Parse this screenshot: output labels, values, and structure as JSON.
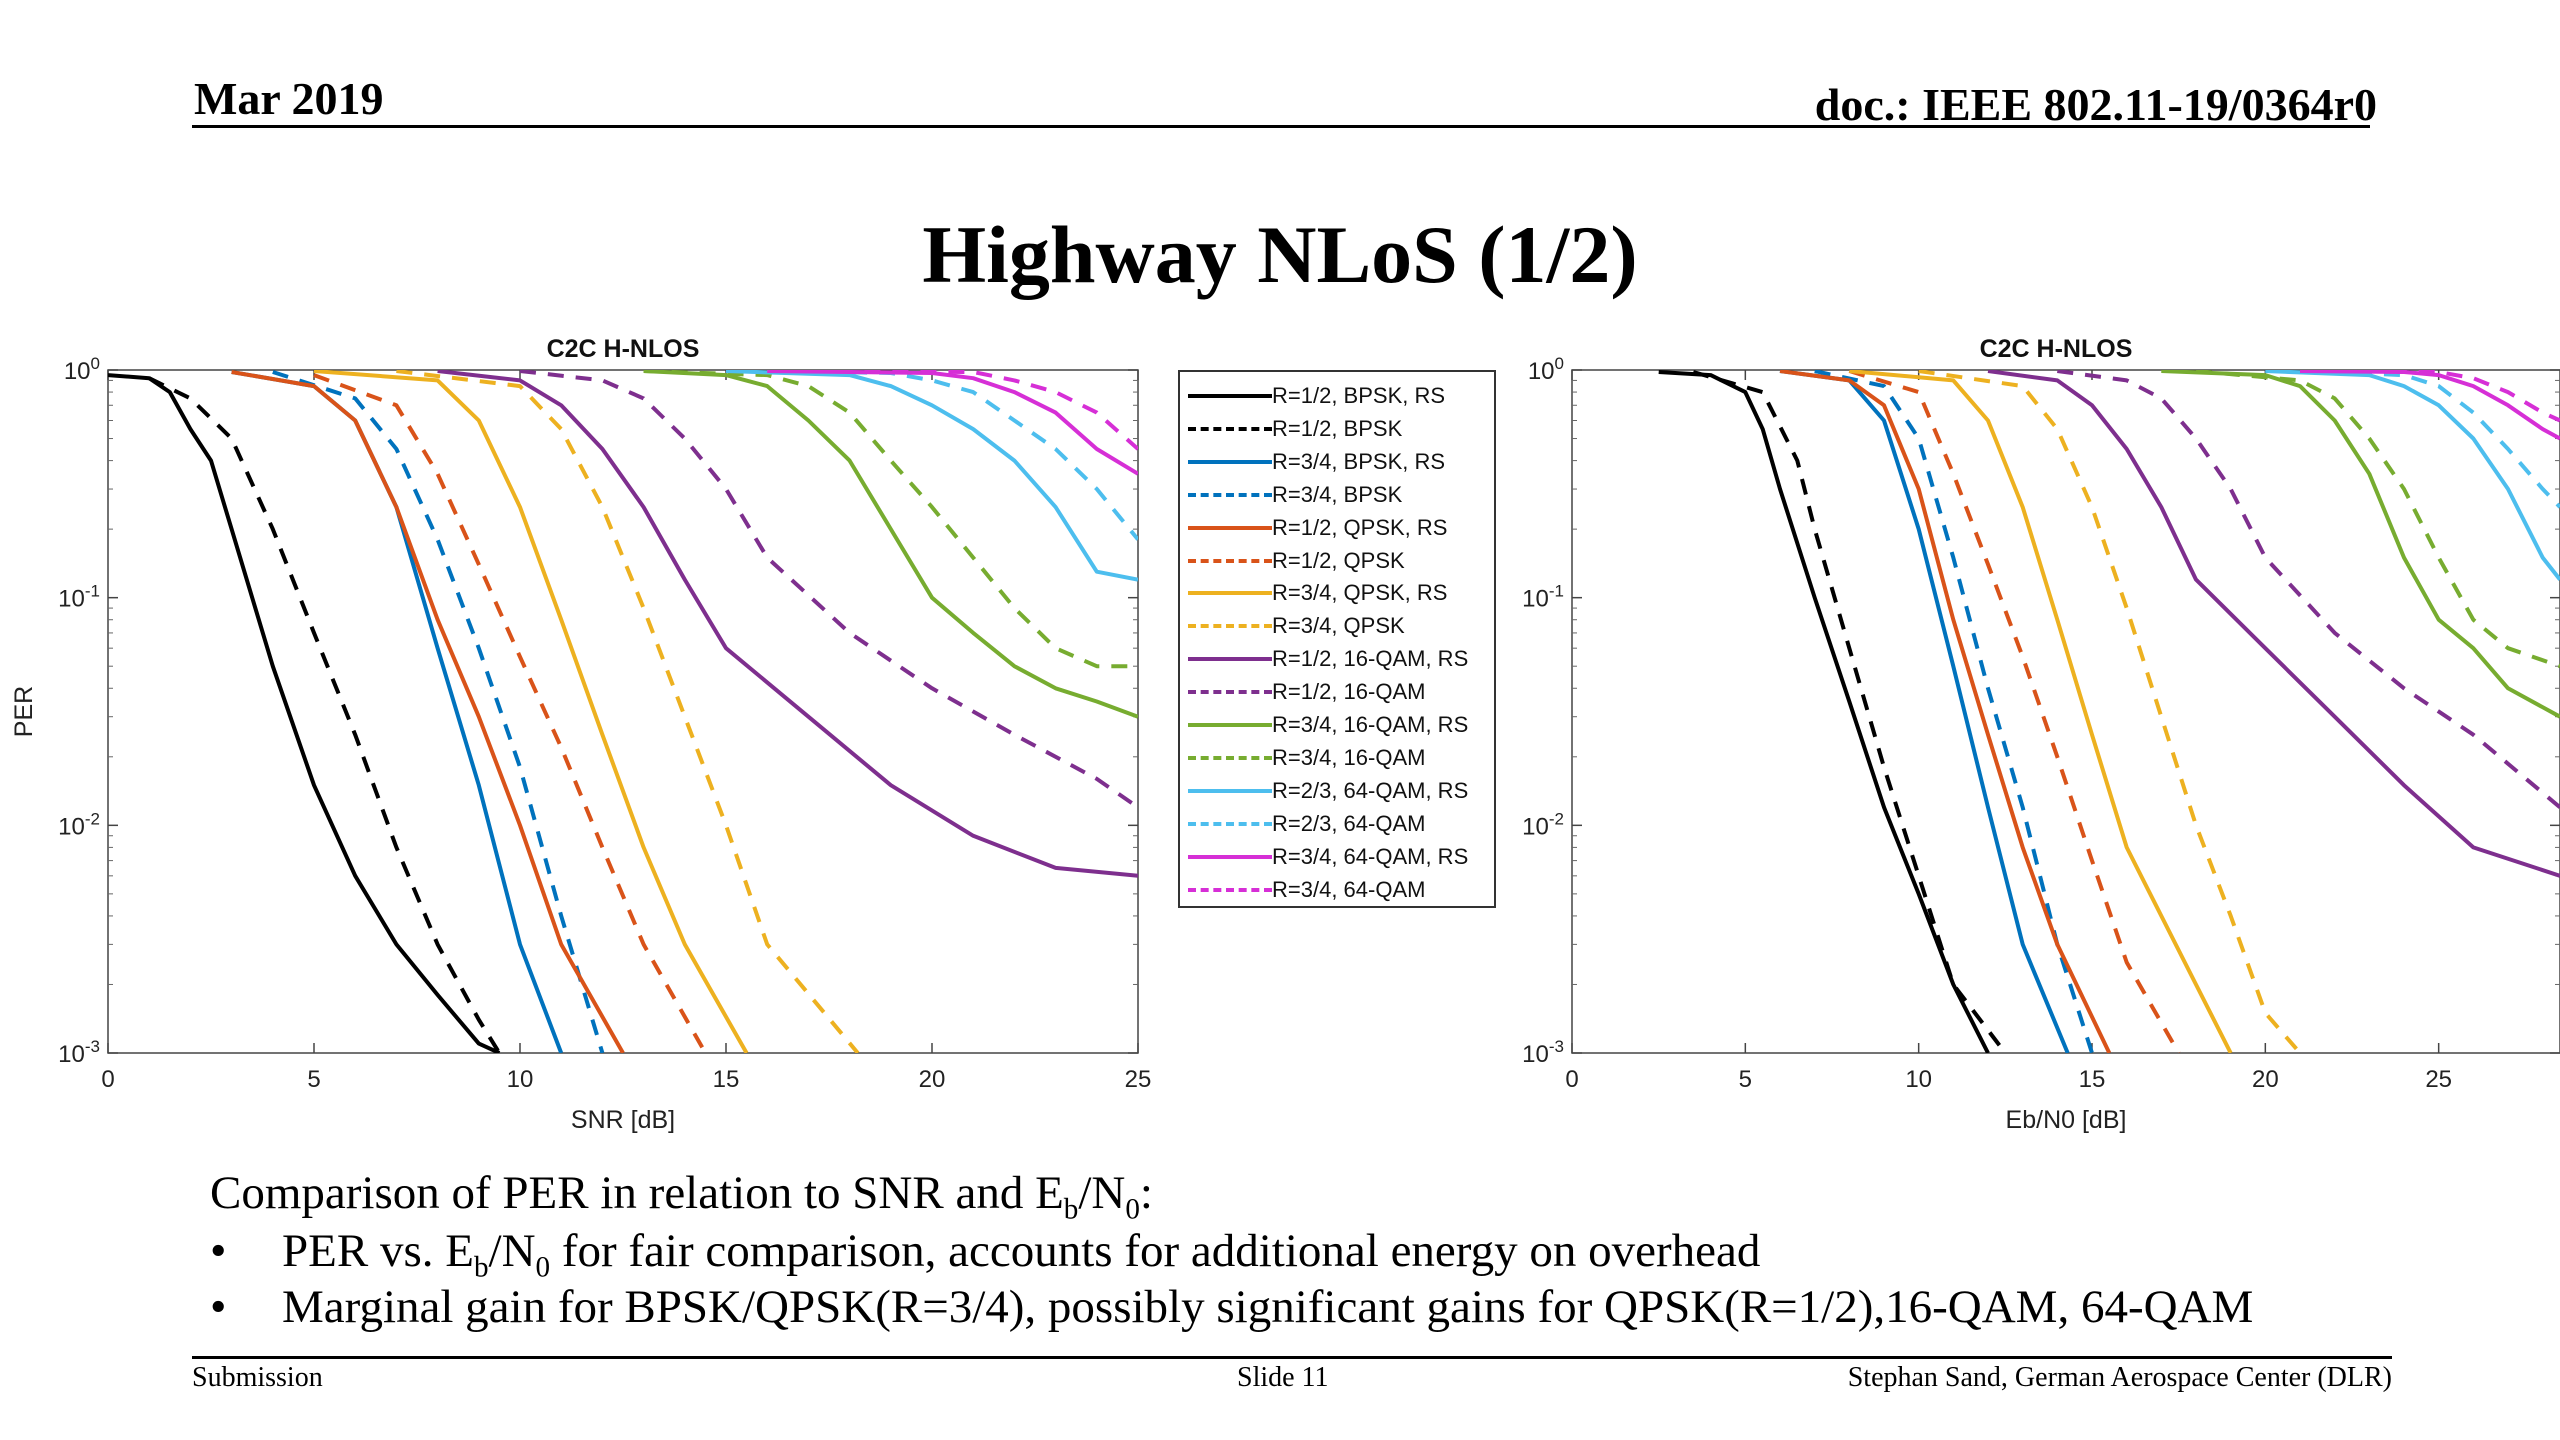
{
  "header": {
    "date": "Mar 2019",
    "doc": "doc.: IEEE 802.11-19/0364r0"
  },
  "slide_title": "Highway NLoS (1/2)",
  "bullets": {
    "intro": {
      "a": "Comparison of PER in relation to SNR and E",
      "sub1": "b",
      "mid": "/N",
      "sub2": "0",
      "end": ":"
    },
    "item1": {
      "a": "PER vs. E",
      "sub1": "b",
      "mid": "/N",
      "sub2": "0",
      "end": " for fair comparison, accounts for additional energy on overhead"
    },
    "item2": {
      "text": "Marginal gain for BPSK/QPSK(R=3/4), possibly significant gains for QPSK(R=1/2),16-QAM, 64-QAM"
    },
    "bullet_char": "•"
  },
  "footer": {
    "left": "Submission",
    "center": "Slide 11",
    "right": "Stephan Sand, German Aerospace Center (DLR)"
  },
  "legend": [
    {
      "label": "R=1/2, BPSK, RS",
      "color": "#000000",
      "dashed": false
    },
    {
      "label": "R=1/2, BPSK",
      "color": "#000000",
      "dashed": true
    },
    {
      "label": "R=3/4, BPSK, RS",
      "color": "#0072BD",
      "dashed": false
    },
    {
      "label": "R=3/4, BPSK",
      "color": "#0072BD",
      "dashed": true
    },
    {
      "label": "R=1/2, QPSK, RS",
      "color": "#D95319",
      "dashed": false
    },
    {
      "label": "R=1/2, QPSK",
      "color": "#D95319",
      "dashed": true
    },
    {
      "label": "R=3/4, QPSK, RS",
      "color": "#EDB120",
      "dashed": false
    },
    {
      "label": "R=3/4, QPSK",
      "color": "#EDB120",
      "dashed": true
    },
    {
      "label": "R=1/2, 16-QAM, RS",
      "color": "#7E2F8E",
      "dashed": false
    },
    {
      "label": "R=1/2, 16-QAM",
      "color": "#7E2F8E",
      "dashed": true
    },
    {
      "label": "R=3/4, 16-QAM, RS",
      "color": "#77AC30",
      "dashed": false
    },
    {
      "label": "R=3/4, 16-QAM",
      "color": "#77AC30",
      "dashed": true
    },
    {
      "label": "R=2/3, 64-QAM, RS",
      "color": "#4DBEEE",
      "dashed": false
    },
    {
      "label": "R=2/3, 64-QAM",
      "color": "#4DBEEE",
      "dashed": true
    },
    {
      "label": "R=3/4, 64-QAM, RS",
      "color": "#D62FD6",
      "dashed": false
    },
    {
      "label": "R=3/4, 64-QAM",
      "color": "#D62FD6",
      "dashed": true
    }
  ],
  "chart_data": [
    {
      "type": "line",
      "title": "C2C H-NLOS",
      "xlabel": "SNR [dB]",
      "ylabel": "PER",
      "xlim": [
        0,
        25
      ],
      "ylim": [
        0.001,
        1
      ],
      "yscale": "log",
      "xticks": [
        0,
        5,
        10,
        15,
        20,
        25
      ],
      "yticks": [
        {
          "label": "10",
          "exp": "0",
          "v": 1
        },
        {
          "label": "10",
          "exp": "-1",
          "v": 0.1
        },
        {
          "label": "10",
          "exp": "-2",
          "v": 0.01
        },
        {
          "label": "10",
          "exp": "-3",
          "v": 0.001
        }
      ],
      "series": [
        {
          "name": "R=1/2, BPSK, RS",
          "color": "#000000",
          "dashed": false,
          "x": [
            0,
            1,
            1.5,
            2,
            2.5,
            3,
            3.5,
            4,
            5,
            6,
            7,
            8,
            9,
            9.5
          ],
          "y": [
            0.95,
            0.92,
            0.8,
            0.55,
            0.4,
            0.2,
            0.1,
            0.05,
            0.015,
            0.006,
            0.003,
            0.0018,
            0.0011,
            0.001
          ]
        },
        {
          "name": "R=1/2, BPSK",
          "color": "#000000",
          "dashed": true,
          "x": [
            1,
            2,
            3,
            4,
            5,
            6,
            7,
            8,
            9,
            9.5
          ],
          "y": [
            0.92,
            0.75,
            0.5,
            0.2,
            0.07,
            0.025,
            0.008,
            0.003,
            0.0014,
            0.001
          ]
        },
        {
          "name": "R=3/4, BPSK, RS",
          "color": "#0072BD",
          "dashed": false,
          "x": [
            3,
            5,
            6,
            7,
            8,
            9,
            10,
            11
          ],
          "y": [
            0.98,
            0.85,
            0.6,
            0.25,
            0.06,
            0.015,
            0.003,
            0.001
          ]
        },
        {
          "name": "R=3/4, BPSK",
          "color": "#0072BD",
          "dashed": true,
          "x": [
            4,
            6,
            7,
            8,
            9,
            10,
            11,
            12
          ],
          "y": [
            0.98,
            0.75,
            0.45,
            0.18,
            0.06,
            0.018,
            0.004,
            0.001
          ]
        },
        {
          "name": "R=1/2, QPSK, RS",
          "color": "#D95319",
          "dashed": false,
          "x": [
            3,
            5,
            6,
            7,
            8,
            9,
            10,
            11,
            12.5
          ],
          "y": [
            0.98,
            0.85,
            0.6,
            0.25,
            0.08,
            0.03,
            0.01,
            0.003,
            0.001
          ]
        },
        {
          "name": "R=1/2, QPSK",
          "color": "#D95319",
          "dashed": true,
          "x": [
            5,
            7,
            8,
            9,
            10,
            11,
            12,
            13,
            14.5
          ],
          "y": [
            0.95,
            0.7,
            0.35,
            0.14,
            0.055,
            0.022,
            0.008,
            0.003,
            0.001
          ]
        },
        {
          "name": "R=3/4, QPSK, RS",
          "color": "#EDB120",
          "dashed": false,
          "x": [
            5,
            8,
            9,
            10,
            11,
            12,
            13,
            14,
            15.5
          ],
          "y": [
            0.99,
            0.9,
            0.6,
            0.25,
            0.08,
            0.025,
            0.008,
            0.003,
            0.001
          ]
        },
        {
          "name": "R=3/4, QPSK",
          "color": "#EDB120",
          "dashed": true,
          "x": [
            7,
            10,
            11,
            12,
            13,
            14,
            15,
            16,
            18.2
          ],
          "y": [
            0.99,
            0.85,
            0.55,
            0.25,
            0.09,
            0.03,
            0.01,
            0.003,
            0.001
          ]
        },
        {
          "name": "R=1/2, 16-QAM, RS",
          "color": "#7E2F8E",
          "dashed": false,
          "x": [
            8,
            10,
            11,
            12,
            13,
            14,
            15,
            17,
            19,
            21,
            23,
            25
          ],
          "y": [
            0.99,
            0.9,
            0.7,
            0.45,
            0.25,
            0.12,
            0.06,
            0.03,
            0.015,
            0.009,
            0.0065,
            0.006
          ]
        },
        {
          "name": "R=1/2, 16-QAM",
          "color": "#7E2F8E",
          "dashed": true,
          "x": [
            10,
            12,
            13,
            14,
            15,
            16,
            18,
            20,
            22,
            24,
            25
          ],
          "y": [
            0.99,
            0.9,
            0.75,
            0.5,
            0.3,
            0.15,
            0.07,
            0.04,
            0.025,
            0.016,
            0.012
          ]
        },
        {
          "name": "R=3/4, 16-QAM, RS",
          "color": "#77AC30",
          "dashed": false,
          "x": [
            13,
            15,
            16,
            17,
            18,
            19,
            20,
            21,
            22,
            23,
            24,
            25
          ],
          "y": [
            0.99,
            0.95,
            0.85,
            0.6,
            0.4,
            0.2,
            0.1,
            0.07,
            0.05,
            0.04,
            0.035,
            0.03
          ]
        },
        {
          "name": "R=3/4, 16-QAM",
          "color": "#77AC30",
          "dashed": true,
          "x": [
            13,
            16,
            17,
            18,
            19,
            20,
            21,
            22,
            23,
            24,
            25
          ],
          "y": [
            0.99,
            0.95,
            0.85,
            0.65,
            0.4,
            0.25,
            0.15,
            0.09,
            0.06,
            0.05,
            0.05
          ]
        },
        {
          "name": "R=2/3, 64-QAM, RS",
          "color": "#4DBEEE",
          "dashed": false,
          "x": [
            15,
            18,
            19,
            20,
            21,
            22,
            23,
            24,
            25
          ],
          "y": [
            0.99,
            0.95,
            0.85,
            0.7,
            0.55,
            0.4,
            0.25,
            0.13,
            0.12
          ]
        },
        {
          "name": "R=2/3, 64-QAM",
          "color": "#4DBEEE",
          "dashed": true,
          "x": [
            16,
            19,
            20,
            21,
            22,
            23,
            24,
            25
          ],
          "y": [
            0.99,
            0.97,
            0.9,
            0.8,
            0.6,
            0.45,
            0.3,
            0.18
          ]
        },
        {
          "name": "R=3/4, 64-QAM, RS",
          "color": "#D62FD6",
          "dashed": false,
          "x": [
            16,
            20,
            21,
            22,
            23,
            24,
            25
          ],
          "y": [
            0.99,
            0.97,
            0.92,
            0.8,
            0.65,
            0.45,
            0.35
          ]
        },
        {
          "name": "R=3/4, 64-QAM",
          "color": "#D62FD6",
          "dashed": true,
          "x": [
            17,
            21,
            22,
            23,
            24,
            25
          ],
          "y": [
            0.99,
            0.98,
            0.9,
            0.8,
            0.65,
            0.45
          ]
        }
      ]
    },
    {
      "type": "line",
      "title": "C2C H-NLOS",
      "xlabel": "Eb/N0 [dB]",
      "ylabel": "",
      "xlim": [
        0,
        28.5
      ],
      "ylim": [
        0.001,
        1
      ],
      "yscale": "log",
      "xticks": [
        0,
        5,
        10,
        15,
        20,
        25
      ],
      "yticks": [
        {
          "label": "10",
          "exp": "0",
          "v": 1
        },
        {
          "label": "10",
          "exp": "-1",
          "v": 0.1
        },
        {
          "label": "10",
          "exp": "-2",
          "v": 0.01
        },
        {
          "label": "10",
          "exp": "-3",
          "v": 0.001
        }
      ],
      "series": [
        {
          "name": "R=1/2, BPSK, RS",
          "color": "#000000",
          "dashed": false,
          "x": [
            2.5,
            4,
            5,
            5.5,
            6,
            7,
            8,
            9,
            10,
            11,
            12
          ],
          "y": [
            0.98,
            0.95,
            0.8,
            0.55,
            0.3,
            0.1,
            0.035,
            0.012,
            0.005,
            0.002,
            0.001
          ]
        },
        {
          "name": "R=1/2, BPSK",
          "color": "#000000",
          "dashed": true,
          "x": [
            3.5,
            5.5,
            6.5,
            7,
            8,
            9,
            10,
            11,
            12.5
          ],
          "y": [
            0.98,
            0.8,
            0.4,
            0.2,
            0.06,
            0.018,
            0.006,
            0.002,
            0.001
          ]
        },
        {
          "name": "R=3/4, BPSK, RS",
          "color": "#0072BD",
          "dashed": false,
          "x": [
            6,
            8,
            9,
            10,
            11,
            12,
            13,
            14.3
          ],
          "y": [
            0.99,
            0.9,
            0.6,
            0.2,
            0.05,
            0.012,
            0.003,
            0.001
          ]
        },
        {
          "name": "R=3/4, BPSK",
          "color": "#0072BD",
          "dashed": true,
          "x": [
            7,
            9,
            10,
            11,
            12,
            13,
            14,
            15
          ],
          "y": [
            0.99,
            0.85,
            0.5,
            0.15,
            0.04,
            0.012,
            0.003,
            0.001
          ]
        },
        {
          "name": "R=1/2, QPSK, RS",
          "color": "#D95319",
          "dashed": false,
          "x": [
            6,
            8,
            9,
            10,
            11,
            12,
            13,
            14,
            15.5
          ],
          "y": [
            0.99,
            0.9,
            0.7,
            0.3,
            0.08,
            0.025,
            0.008,
            0.003,
            0.001
          ]
        },
        {
          "name": "R=1/2, QPSK",
          "color": "#D95319",
          "dashed": true,
          "x": [
            8,
            10,
            11,
            12,
            13,
            14,
            15,
            16,
            17.5
          ],
          "y": [
            0.99,
            0.8,
            0.35,
            0.14,
            0.055,
            0.02,
            0.007,
            0.0025,
            0.001
          ]
        },
        {
          "name": "R=3/4, QPSK, RS",
          "color": "#EDB120",
          "dashed": false,
          "x": [
            8,
            11,
            12,
            13,
            14,
            15,
            16,
            17,
            18,
            19
          ],
          "y": [
            0.99,
            0.9,
            0.6,
            0.25,
            0.08,
            0.025,
            0.008,
            0.004,
            0.002,
            0.001
          ]
        },
        {
          "name": "R=3/4, QPSK",
          "color": "#EDB120",
          "dashed": true,
          "x": [
            10,
            13,
            14,
            15,
            16,
            17,
            18,
            19,
            20,
            21
          ],
          "y": [
            0.99,
            0.85,
            0.55,
            0.25,
            0.09,
            0.03,
            0.01,
            0.004,
            0.0015,
            0.001
          ]
        },
        {
          "name": "R=1/2, 16-QAM, RS",
          "color": "#7E2F8E",
          "dashed": false,
          "x": [
            12,
            14,
            15,
            16,
            17,
            18,
            20,
            22,
            24,
            26,
            28.5
          ],
          "y": [
            0.99,
            0.9,
            0.7,
            0.45,
            0.25,
            0.12,
            0.06,
            0.03,
            0.015,
            0.008,
            0.006
          ]
        },
        {
          "name": "R=1/2, 16-QAM",
          "color": "#7E2F8E",
          "dashed": true,
          "x": [
            14,
            16,
            17,
            18,
            19,
            20,
            22,
            24,
            26,
            28.5
          ],
          "y": [
            0.99,
            0.9,
            0.75,
            0.5,
            0.3,
            0.15,
            0.07,
            0.04,
            0.025,
            0.012
          ]
        },
        {
          "name": "R=3/4, 16-QAM, RS",
          "color": "#77AC30",
          "dashed": false,
          "x": [
            17,
            20,
            21,
            22,
            23,
            24,
            25,
            26,
            27,
            28.5
          ],
          "y": [
            0.99,
            0.95,
            0.85,
            0.6,
            0.35,
            0.15,
            0.08,
            0.06,
            0.04,
            0.03
          ]
        },
        {
          "name": "R=3/4, 16-QAM",
          "color": "#77AC30",
          "dashed": true,
          "x": [
            18,
            21,
            22,
            23,
            24,
            25,
            26,
            27,
            28.5
          ],
          "y": [
            0.99,
            0.9,
            0.75,
            0.5,
            0.3,
            0.15,
            0.08,
            0.06,
            0.05
          ]
        },
        {
          "name": "R=2/3, 64-QAM, RS",
          "color": "#4DBEEE",
          "dashed": false,
          "x": [
            20,
            23,
            24,
            25,
            26,
            27,
            28,
            28.5
          ],
          "y": [
            0.99,
            0.95,
            0.85,
            0.7,
            0.5,
            0.3,
            0.15,
            0.12
          ]
        },
        {
          "name": "R=2/3, 64-QAM",
          "color": "#4DBEEE",
          "dashed": true,
          "x": [
            21,
            24,
            25,
            26,
            27,
            28,
            28.5
          ],
          "y": [
            0.99,
            0.95,
            0.85,
            0.65,
            0.45,
            0.3,
            0.25
          ]
        },
        {
          "name": "R=3/4, 64-QAM, RS",
          "color": "#D62FD6",
          "dashed": false,
          "x": [
            21,
            24,
            25,
            26,
            27,
            28,
            28.5
          ],
          "y": [
            0.99,
            0.98,
            0.95,
            0.85,
            0.7,
            0.55,
            0.5
          ]
        },
        {
          "name": "R=3/4, 64-QAM",
          "color": "#D62FD6",
          "dashed": true,
          "x": [
            22,
            25,
            26,
            27,
            28,
            28.5
          ],
          "y": [
            0.99,
            0.98,
            0.92,
            0.8,
            0.65,
            0.6
          ]
        }
      ]
    }
  ]
}
